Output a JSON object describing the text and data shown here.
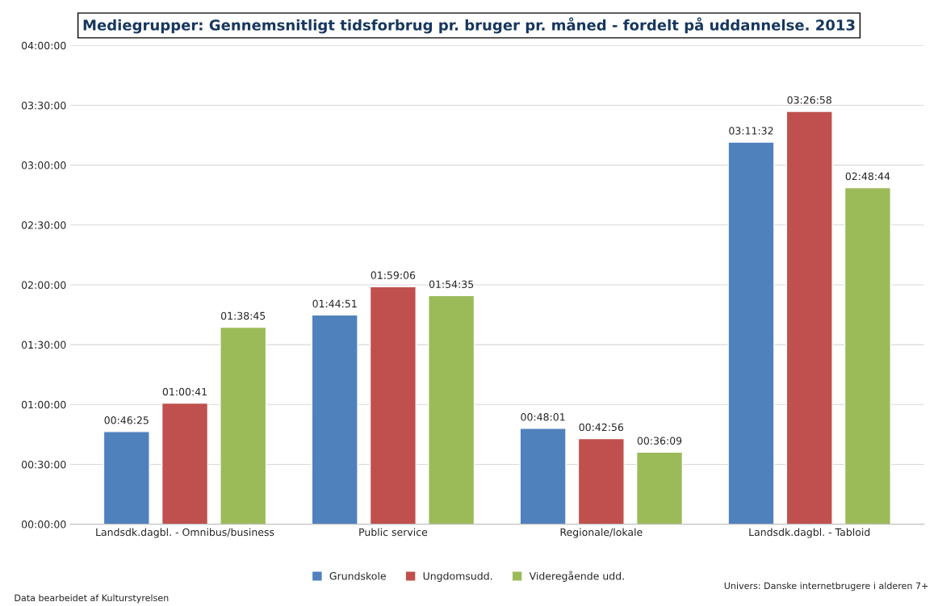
{
  "chart_data": {
    "type": "bar",
    "title": "Mediegrupper: Gennemsnitligt tidsforbrug pr. bruger pr. måned - fordelt på uddannelse. 2013",
    "categories": [
      "Landsdk.dagbl. - Omnibus/business",
      "Public service",
      "Regionale/lokale",
      "Landsdk.dagbl. - Tabloid"
    ],
    "series": [
      {
        "name": "Grundskole",
        "color": "#4f81bd",
        "values": [
          2785,
          6291,
          2881,
          11492
        ],
        "value_labels": [
          "00:46:25",
          "01:44:51",
          "00:48:01",
          "03:11:32"
        ]
      },
      {
        "name": "Ungdomsudd.",
        "color": "#c0504d",
        "values": [
          3641,
          7146,
          2576,
          12418
        ],
        "value_labels": [
          "01:00:41",
          "01:59:06",
          "00:42:56",
          "03:26:58"
        ]
      },
      {
        "name": "Videregående udd.",
        "color": "#9bbb59",
        "values": [
          5925,
          6875,
          2169,
          10124
        ],
        "value_labels": [
          "01:38:45",
          "01:54:35",
          "00:36:09",
          "02:48:44"
        ]
      }
    ],
    "ylim": [
      0,
      14400
    ],
    "yticks": [
      {
        "value": 0,
        "label": "00:00:00"
      },
      {
        "value": 1800,
        "label": "00:30:00"
      },
      {
        "value": 3600,
        "label": "01:00:00"
      },
      {
        "value": 5400,
        "label": "01:30:00"
      },
      {
        "value": 7200,
        "label": "02:00:00"
      },
      {
        "value": 9000,
        "label": "02:30:00"
      },
      {
        "value": 10800,
        "label": "03:00:00"
      },
      {
        "value": 12600,
        "label": "03:30:00"
      },
      {
        "value": 14400,
        "label": "04:00:00"
      }
    ],
    "grid": "y",
    "legend": "bottom",
    "annotations": [
      "Data bearbeidet af Kulturstyrelsen",
      "Univers: Danske internetbrugere i alderen 7+"
    ]
  }
}
